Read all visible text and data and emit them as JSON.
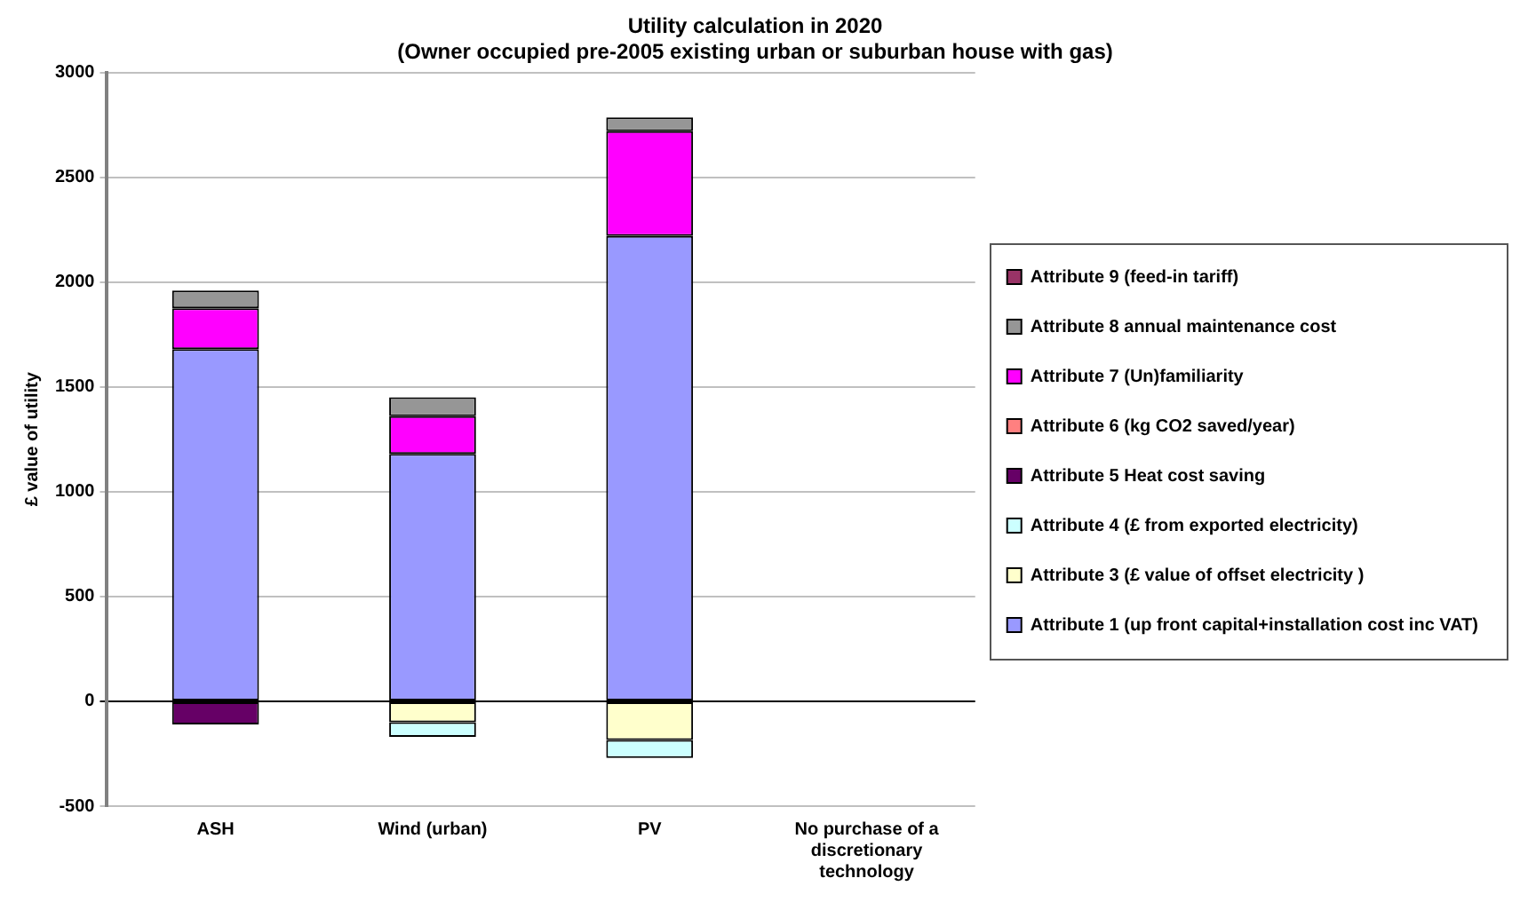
{
  "chart_data": {
    "type": "bar",
    "title": "Utility calculation in 2020",
    "subtitle": "(Owner occupied pre-2005 existing urban or suburban house with gas)",
    "ylabel": "£ value of utility",
    "categories": [
      "ASH",
      "Wind (urban)",
      "PV",
      "No purchase of a discretionary technology"
    ],
    "stacked": true,
    "ylim": [
      -500,
      3000
    ],
    "yticks": [
      -500,
      0,
      500,
      1000,
      1500,
      2000,
      2500,
      3000
    ],
    "grid": "y",
    "legend": "right",
    "series": [
      {
        "name": "Attribute 1 (up front capital+installation cost inc VAT)",
        "color": "#9999ff",
        "values": [
          1680,
          1180,
          2220,
          null
        ]
      },
      {
        "name": "Attribute 3 (£ value of offset electricity )",
        "color": "#ffffcc",
        "values": [
          null,
          -100,
          -185,
          null
        ]
      },
      {
        "name": "Attribute 4 (£ from exported electricity)",
        "color": "#ccffff",
        "values": [
          null,
          -70,
          -85,
          null
        ]
      },
      {
        "name": "Attribute 5 Heat cost saving",
        "color": "#660066",
        "values": [
          -110,
          null,
          null,
          null
        ]
      },
      {
        "name": "Attribute 6 (kg CO2 saved/year)",
        "color": "#ff8080",
        "values": [
          null,
          null,
          null,
          null
        ]
      },
      {
        "name": "Attribute 7 (Un)familiarity",
        "color": "#ff00ff",
        "values": [
          195,
          180,
          500,
          null
        ]
      },
      {
        "name": "Attribute 8 annual maintenance cost",
        "color": "#969696",
        "values": [
          85,
          90,
          65,
          null
        ]
      },
      {
        "name": "Attribute 9 (feed-in tariff)",
        "color": "#993366",
        "values": [
          null,
          null,
          null,
          null
        ]
      }
    ]
  }
}
